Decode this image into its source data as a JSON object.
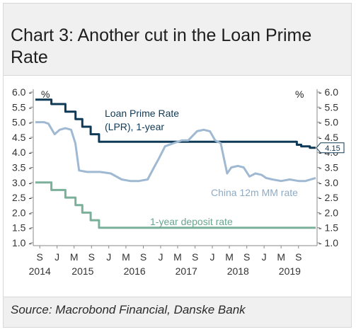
{
  "title": "Chart 3: Another cut in the Loan Prime Rate",
  "source": "Source: Macrobond Financial, Danske Bank",
  "chart_data": {
    "type": "line",
    "title": "Chart 3: Another cut in the Loan Prime Rate",
    "x_range": [
      "2014-08-01",
      "2019-12-31"
    ],
    "ylim": [
      1.0,
      6.0
    ],
    "y_ticks": [
      6.0,
      5.5,
      5.0,
      4.5,
      4.0,
      3.5,
      3.0,
      2.5,
      2.0,
      1.5,
      1.0
    ],
    "y_tick_labels": [
      "6.0",
      "5.5",
      "5.0",
      "4.5",
      "4.0",
      "3.5",
      "3.0",
      "2.5",
      "2.0",
      "1.5",
      "1.0"
    ],
    "y_unit_left": "%",
    "y_unit_right": "%",
    "x_month_ticks": [
      {
        "label": "S",
        "date": "2014-09-01"
      },
      {
        "label": "J",
        "date": "2015-01-01"
      },
      {
        "label": "M",
        "date": "2015-05-01"
      },
      {
        "label": "S",
        "date": "2015-09-01"
      },
      {
        "label": "J",
        "date": "2016-01-01"
      },
      {
        "label": "M",
        "date": "2016-05-01"
      },
      {
        "label": "S",
        "date": "2016-09-01"
      },
      {
        "label": "J",
        "date": "2017-01-01"
      },
      {
        "label": "M",
        "date": "2017-05-01"
      },
      {
        "label": "S",
        "date": "2017-09-01"
      },
      {
        "label": "J",
        "date": "2018-01-01"
      },
      {
        "label": "M",
        "date": "2018-05-01"
      },
      {
        "label": "S",
        "date": "2018-09-01"
      },
      {
        "label": "J",
        "date": "2019-01-01"
      },
      {
        "label": "M",
        "date": "2019-05-01"
      },
      {
        "label": "S",
        "date": "2019-09-01"
      }
    ],
    "x_year_ticks": [
      {
        "label": "2014",
        "date": "2014-09-01"
      },
      {
        "label": "2015",
        "date": "2015-07-01"
      },
      {
        "label": "2016",
        "date": "2016-07-01"
      },
      {
        "label": "2017",
        "date": "2017-07-01"
      },
      {
        "label": "2018",
        "date": "2018-07-01"
      },
      {
        "label": "2019",
        "date": "2019-07-01"
      }
    ],
    "grid": false,
    "legend": "inline labels",
    "end_badge": {
      "text": "4.15",
      "value": 4.15
    },
    "series": [
      {
        "name": "Loan Prime Rate (LPR), 1-year",
        "label_lines": [
          "Loan Prime Rate",
          "(LPR), 1-year"
        ],
        "color": "#0f3a57",
        "step": true,
        "points": [
          [
            "2014-08-01",
            5.75
          ],
          [
            "2014-11-22",
            5.6
          ],
          [
            "2015-03-01",
            5.35
          ],
          [
            "2015-05-11",
            5.1
          ],
          [
            "2015-06-28",
            4.85
          ],
          [
            "2015-08-26",
            4.6
          ],
          [
            "2015-10-24",
            4.35
          ],
          [
            "2019-08-20",
            4.25
          ],
          [
            "2019-09-20",
            4.2
          ],
          [
            "2019-11-20",
            4.15
          ],
          [
            "2019-12-31",
            4.15
          ]
        ]
      },
      {
        "name": "China 12m MM rate",
        "label_lines": [
          "China 12m MM rate"
        ],
        "color": "#9fb9d2",
        "step": false,
        "points": [
          [
            "2014-08-01",
            5.0
          ],
          [
            "2014-10-01",
            5.0
          ],
          [
            "2014-11-01",
            4.95
          ],
          [
            "2014-12-15",
            4.6
          ],
          [
            "2015-01-20",
            4.75
          ],
          [
            "2015-03-01",
            4.8
          ],
          [
            "2015-04-10",
            4.75
          ],
          [
            "2015-05-10",
            4.3
          ],
          [
            "2015-06-05",
            3.4
          ],
          [
            "2015-08-01",
            3.35
          ],
          [
            "2015-11-01",
            3.35
          ],
          [
            "2016-01-15",
            3.3
          ],
          [
            "2016-04-01",
            3.1
          ],
          [
            "2016-06-01",
            3.05
          ],
          [
            "2016-08-01",
            3.05
          ],
          [
            "2016-10-01",
            3.1
          ],
          [
            "2016-11-15",
            3.5
          ],
          [
            "2016-12-20",
            3.8
          ],
          [
            "2017-02-01",
            4.2
          ],
          [
            "2017-04-01",
            4.3
          ],
          [
            "2017-06-01",
            4.4
          ],
          [
            "2017-07-15",
            4.4
          ],
          [
            "2017-08-15",
            4.55
          ],
          [
            "2017-09-15",
            4.7
          ],
          [
            "2017-11-01",
            4.75
          ],
          [
            "2017-12-15",
            4.7
          ],
          [
            "2018-01-20",
            4.4
          ],
          [
            "2018-03-01",
            4.3
          ],
          [
            "2018-04-15",
            3.3
          ],
          [
            "2018-05-15",
            3.5
          ],
          [
            "2018-07-01",
            3.55
          ],
          [
            "2018-08-10",
            3.5
          ],
          [
            "2018-09-20",
            3.2
          ],
          [
            "2018-11-01",
            3.3
          ],
          [
            "2018-12-15",
            3.25
          ],
          [
            "2019-01-15",
            3.15
          ],
          [
            "2019-03-01",
            3.1
          ],
          [
            "2019-05-01",
            3.05
          ],
          [
            "2019-07-01",
            3.1
          ],
          [
            "2019-09-01",
            3.05
          ],
          [
            "2019-10-20",
            3.05
          ],
          [
            "2019-12-31",
            3.15
          ]
        ]
      },
      {
        "name": "1-year deposit rate",
        "label_lines": [
          "1-year deposit rate"
        ],
        "color": "#7bb09b",
        "step": true,
        "points": [
          [
            "2014-08-01",
            3.0
          ],
          [
            "2014-11-22",
            2.75
          ],
          [
            "2015-03-01",
            2.5
          ],
          [
            "2015-05-11",
            2.25
          ],
          [
            "2015-06-28",
            2.0
          ],
          [
            "2015-08-26",
            1.75
          ],
          [
            "2015-10-24",
            1.5
          ],
          [
            "2019-12-31",
            1.5
          ]
        ]
      }
    ]
  }
}
